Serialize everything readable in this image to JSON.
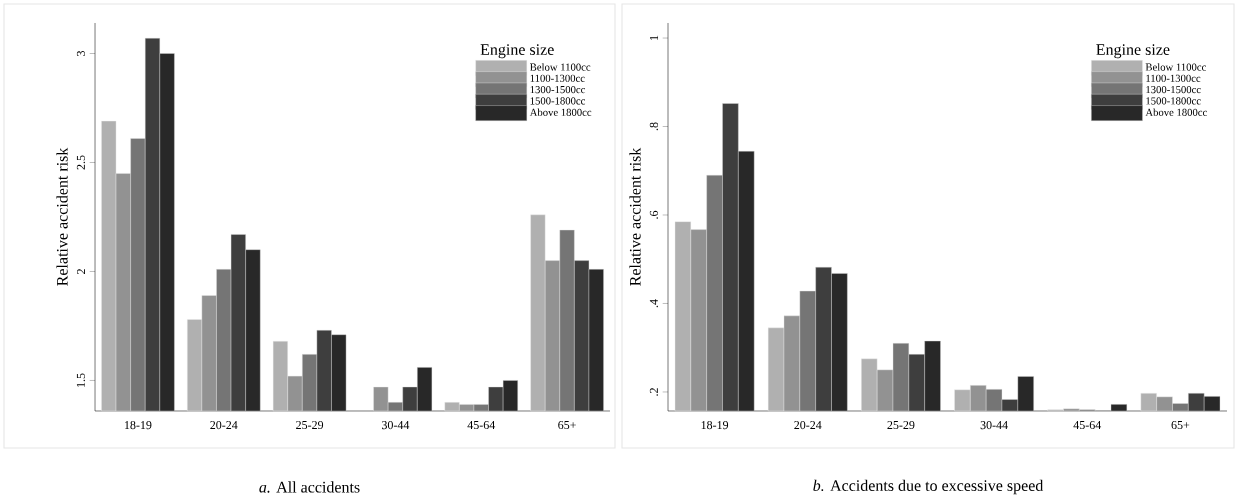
{
  "chart_data": [
    {
      "type": "bar",
      "title": "*a.* All accidents",
      "ylabel": "Relative accident risk",
      "legend_title": "Engine size",
      "legend": "top right",
      "categories": [
        "18-19",
        "20-24",
        "25-29",
        "30-44",
        "45-64",
        "65+"
      ],
      "ylim": [
        1.36,
        3.14
      ],
      "yticks": [
        1.5,
        2,
        2.5,
        3
      ],
      "series": [
        {
          "name": "Below 1100cc",
          "color": "#b0b0b0",
          "values": [
            2.69,
            1.78,
            1.68,
            null,
            1.4,
            2.26
          ]
        },
        {
          "name": "1100-1300cc",
          "color": "#929292",
          "values": [
            2.45,
            1.89,
            1.52,
            1.47,
            1.39,
            2.05
          ]
        },
        {
          "name": "1300-1500cc",
          "color": "#757575",
          "values": [
            2.61,
            2.01,
            1.62,
            1.4,
            1.39,
            2.19
          ]
        },
        {
          "name": "1500-1800cc",
          "color": "#3e3e3e",
          "values": [
            3.07,
            2.17,
            1.73,
            1.47,
            1.47,
            2.05
          ]
        },
        {
          "name": "Above 1800cc",
          "color": "#282828",
          "values": [
            3.0,
            2.1,
            1.71,
            1.56,
            1.5,
            2.01
          ]
        }
      ]
    },
    {
      "type": "bar",
      "title": "*b.* Accidents due to excessive speed",
      "ylabel": "Relative accident risk",
      "legend_title": "Engine size",
      "legend": "top right",
      "categories": [
        "18-19",
        "20-24",
        "25-29",
        "30-44",
        "45-64",
        "65+"
      ],
      "ylim": [
        0.157,
        1.034
      ],
      "yticks": [
        {
          "value": 0.2,
          "label": ".2"
        },
        {
          "value": 0.4,
          "label": ".4"
        },
        {
          "value": 0.6,
          "label": ".6"
        },
        {
          "value": 0.8,
          "label": ".8"
        },
        1
      ],
      "series": [
        {
          "name": "Below 1100cc",
          "color": "#b0b0b0",
          "values": [
            0.585,
            0.345,
            0.275,
            0.205,
            0.16,
            0.197
          ]
        },
        {
          "name": "1100-1300cc",
          "color": "#929292",
          "values": [
            0.567,
            0.372,
            0.25,
            0.215,
            0.162,
            0.189
          ]
        },
        {
          "name": "1300-1500cc",
          "color": "#757575",
          "values": [
            0.69,
            0.428,
            0.31,
            0.206,
            0.16,
            0.174
          ]
        },
        {
          "name": "1500-1800cc",
          "color": "#3e3e3e",
          "values": [
            0.852,
            0.482,
            0.285,
            0.183,
            0.158,
            0.197
          ]
        },
        {
          "name": "Above 1800cc",
          "color": "#282828",
          "values": [
            0.744,
            0.468,
            0.315,
            0.235,
            0.172,
            0.19
          ]
        }
      ]
    }
  ]
}
